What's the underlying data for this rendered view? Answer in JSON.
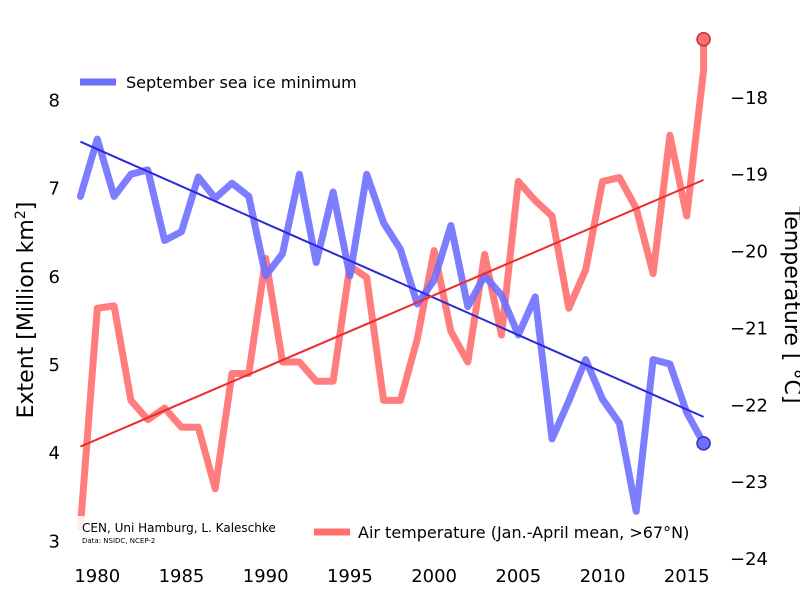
{
  "chart_data": {
    "type": "line",
    "x": [
      1979,
      1980,
      1981,
      1982,
      1983,
      1984,
      1985,
      1986,
      1987,
      1988,
      1989,
      1990,
      1991,
      1992,
      1993,
      1994,
      1995,
      1996,
      1997,
      1998,
      1999,
      2000,
      2001,
      2002,
      2003,
      2004,
      2005,
      2006,
      2007,
      2008,
      2009,
      2010,
      2011,
      2012,
      2013,
      2014,
      2015,
      2016
    ],
    "xticks": [
      "1980",
      "1985",
      "1990",
      "1995",
      "2000",
      "2005",
      "2010",
      "2015"
    ],
    "xlim": [
      1978.5,
      2016.5
    ],
    "grid": true,
    "left_axis": {
      "label": "Extent [Million km",
      "label_sup": "2",
      "label_end": "]",
      "ylim": [
        2.8,
        8.9
      ],
      "ticks": [
        "3",
        "4",
        "5",
        "6",
        "7",
        "8"
      ]
    },
    "right_axis": {
      "label": "Temperature [ °C]",
      "ylim": [
        -24.0,
        -17.0
      ],
      "ticks": [
        "-18",
        "-19",
        "-20",
        "-21",
        "-22",
        "-23",
        "-24"
      ]
    },
    "series": [
      {
        "name": "September sea ice minimum",
        "axis": "left",
        "color": "#6f6fff",
        "values": [
          6.9,
          7.55,
          6.9,
          7.15,
          7.2,
          6.4,
          6.5,
          7.12,
          6.88,
          7.05,
          6.9,
          6.0,
          6.25,
          7.15,
          6.15,
          6.95,
          6.0,
          7.15,
          6.6,
          6.3,
          5.68,
          5.95,
          6.57,
          5.65,
          6.0,
          5.78,
          5.33,
          5.76,
          4.15,
          4.58,
          5.05,
          4.6,
          4.33,
          3.33,
          5.05,
          5.0,
          4.45,
          4.1
        ],
        "trend": [
          7.52,
          4.4
        ]
      },
      {
        "name": "Air temperature (Jan.-April mean, >67°N)",
        "axis": "right",
        "color": "#ff6f6f",
        "values": [
          -23.6,
          -20.75,
          -20.72,
          -21.95,
          -22.2,
          -22.05,
          -22.3,
          -22.3,
          -23.1,
          -21.6,
          -21.6,
          -20.1,
          -21.45,
          -21.45,
          -21.7,
          -21.7,
          -20.2,
          -20.35,
          -21.95,
          -21.95,
          -21.15,
          -20.0,
          -21.05,
          -21.45,
          -20.05,
          -21.1,
          -19.1,
          -19.35,
          -19.55,
          -20.75,
          -20.25,
          -19.1,
          -19.05,
          -19.45,
          -20.3,
          -18.5,
          -19.55,
          -17.65
        ],
        "endpoint": -17.25,
        "trend": [
          -22.55,
          -19.08
        ]
      }
    ]
  },
  "credit": {
    "line1": "CEN, Uni Hamburg, L. Kaleschke",
    "line2": "Data: NSIDC, NCEP-2"
  }
}
